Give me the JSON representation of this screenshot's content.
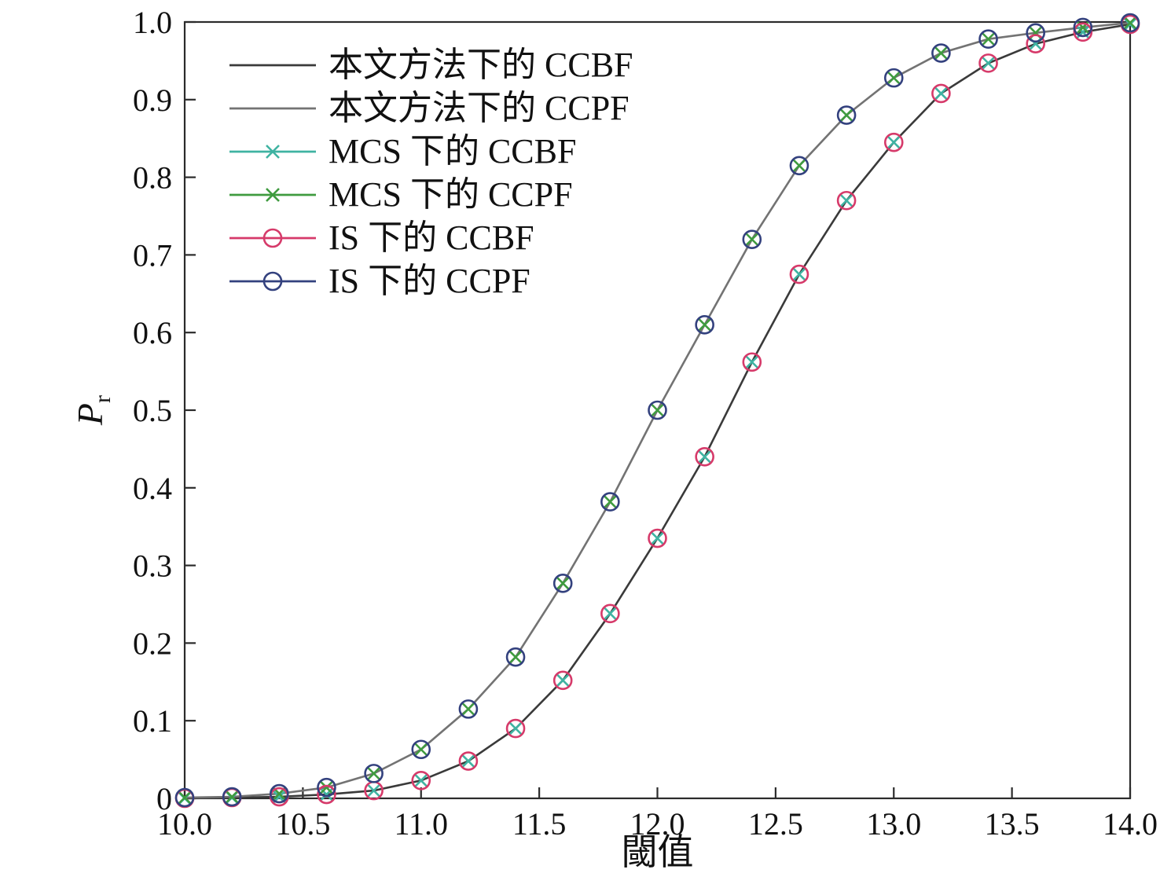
{
  "chart_data": {
    "type": "line",
    "title": "",
    "xlabel": "閾值",
    "ylabel_main": "P",
    "ylabel_sub": "r",
    "xlim": [
      10.0,
      14.0
    ],
    "ylim": [
      0,
      1.0
    ],
    "xticks": [
      10.0,
      10.5,
      11.0,
      11.5,
      12.0,
      12.5,
      13.0,
      13.5,
      14.0
    ],
    "yticks": [
      0,
      0.1,
      0.2,
      0.3,
      0.4,
      0.5,
      0.6,
      0.7,
      0.8,
      0.9,
      1.0
    ],
    "grid": false,
    "legend_position": "upper left",
    "x": [
      10.0,
      10.2,
      10.4,
      10.6,
      10.8,
      11.0,
      11.2,
      11.4,
      11.6,
      11.8,
      12.0,
      12.2,
      12.4,
      12.6,
      12.8,
      13.0,
      13.2,
      13.4,
      13.6,
      13.8,
      14.0
    ],
    "series": [
      {
        "name": "本文方法下的 CCBF",
        "style": "line",
        "marker": "none",
        "color": "#3a3a3a",
        "values": [
          0.0,
          0.001,
          0.002,
          0.005,
          0.01,
          0.023,
          0.048,
          0.09,
          0.152,
          0.238,
          0.335,
          0.44,
          0.562,
          0.675,
          0.77,
          0.845,
          0.908,
          0.947,
          0.972,
          0.987,
          0.997
        ]
      },
      {
        "name": "本文方法下的 CCPF",
        "style": "line",
        "marker": "none",
        "color": "#737373",
        "values": [
          0.001,
          0.002,
          0.006,
          0.014,
          0.032,
          0.063,
          0.115,
          0.182,
          0.277,
          0.382,
          0.5,
          0.61,
          0.72,
          0.815,
          0.88,
          0.928,
          0.96,
          0.978,
          0.986,
          0.993,
          0.999
        ]
      },
      {
        "name": "MCS 下的 CCBF",
        "style": "marker",
        "marker": "x",
        "color": "#3fb3a2",
        "values": [
          0.0,
          0.001,
          0.002,
          0.005,
          0.01,
          0.023,
          0.048,
          0.09,
          0.152,
          0.238,
          0.335,
          0.44,
          0.562,
          0.675,
          0.77,
          0.845,
          0.908,
          0.947,
          0.972,
          0.987,
          0.997
        ]
      },
      {
        "name": "MCS 下的 CCPF",
        "style": "marker",
        "marker": "x",
        "color": "#3f9b3f",
        "values": [
          0.001,
          0.002,
          0.006,
          0.014,
          0.032,
          0.063,
          0.115,
          0.182,
          0.277,
          0.382,
          0.5,
          0.61,
          0.72,
          0.815,
          0.88,
          0.928,
          0.96,
          0.978,
          0.986,
          0.993,
          0.999
        ]
      },
      {
        "name": "IS 下的 CCBF",
        "style": "marker",
        "marker": "o",
        "color": "#d63a6a",
        "values": [
          0.0,
          0.001,
          0.002,
          0.005,
          0.01,
          0.023,
          0.048,
          0.09,
          0.152,
          0.238,
          0.335,
          0.44,
          0.562,
          0.675,
          0.77,
          0.845,
          0.908,
          0.947,
          0.972,
          0.987,
          0.997
        ]
      },
      {
        "name": "IS 下的 CCPF",
        "style": "marker",
        "marker": "o",
        "color": "#33417e",
        "values": [
          0.001,
          0.002,
          0.006,
          0.014,
          0.032,
          0.063,
          0.115,
          0.182,
          0.277,
          0.382,
          0.5,
          0.61,
          0.72,
          0.815,
          0.88,
          0.928,
          0.96,
          0.978,
          0.986,
          0.993,
          0.999
        ]
      }
    ],
    "colors": {
      "axis": "#2b2b2b",
      "text": "#111111"
    }
  }
}
